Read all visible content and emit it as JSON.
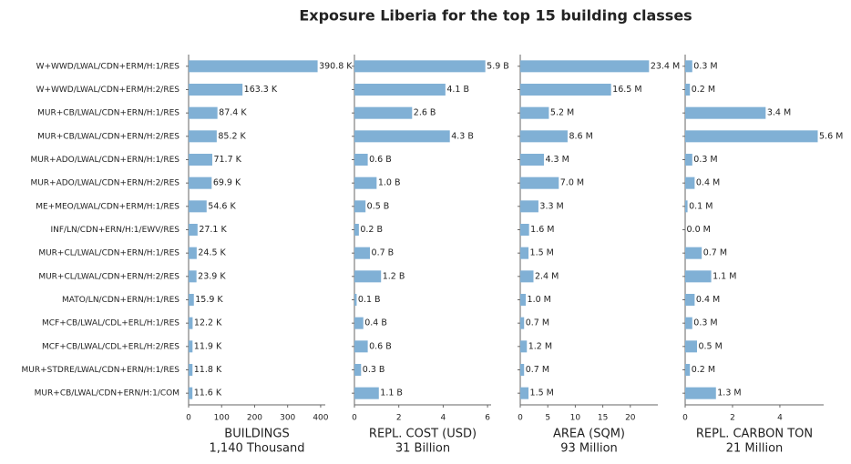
{
  "title": "Exposure Liberia for the top 15 building classes",
  "chart_data": [
    {
      "type": "barh",
      "color": "#80b0d5",
      "categories": [
        "W+WWD/LWAL/CDN+ERM/H:1/RES",
        "W+WWD/LWAL/CDN+ERM/H:2/RES",
        "MUR+CB/LWAL/CDN+ERN/H:1/RES",
        "MUR+CB/LWAL/CDN+ERN/H:2/RES",
        "MUR+ADO/LWAL/CDN+ERN/H:1/RES",
        "MUR+ADO/LWAL/CDN+ERN/H:2/RES",
        "ME+MEO/LWAL/CDN+ERM/H:1/RES",
        "INF/LN/CDN+ERN/H:1/EWV/RES",
        "MUR+CL/LWAL/CDN+ERN/H:1/RES",
        "MUR+CL/LWAL/CDN+ERN/H:2/RES",
        "MATO/LN/CDN+ERN/H:1/RES",
        "MCF+CB/LWAL/CDL+ERL/H:1/RES",
        "MCF+CB/LWAL/CDL+ERL/H:2/RES",
        "MUR+STDRE/LWAL/CDN+ERN/H:1/RES",
        "MUR+CB/LWAL/CDN+ERN/H:1/COM"
      ],
      "values": [
        390.8,
        163.3,
        87.4,
        85.2,
        71.7,
        69.9,
        54.6,
        27.1,
        24.5,
        23.9,
        15.9,
        12.2,
        11.9,
        11.8,
        11.6
      ],
      "value_labels": [
        "390.8 K",
        "163.3 K",
        "87.4 K",
        "85.2 K",
        "71.7 K",
        "69.9 K",
        "54.6 K",
        "27.1 K",
        "24.5 K",
        "23.9 K",
        "15.9 K",
        "12.2 K",
        "11.9 K",
        "11.8 K",
        "11.6 K"
      ],
      "xlim": [
        0,
        414
      ],
      "xticks": [
        0,
        100,
        200,
        300,
        400
      ],
      "xlabel": [
        "BUILDINGS",
        "1,140 Thousand"
      ]
    },
    {
      "type": "barh",
      "color": "#80b0d5",
      "values": [
        5.9,
        4.1,
        2.6,
        4.3,
        0.6,
        1.0,
        0.5,
        0.2,
        0.7,
        1.2,
        0.1,
        0.4,
        0.6,
        0.3,
        1.1
      ],
      "value_labels": [
        "5.9 B",
        "4.1 B",
        "2.6 B",
        "4.3 B",
        "0.6 B",
        "1.0 B",
        "0.5 B",
        "0.2 B",
        "0.7 B",
        "1.2 B",
        "0.1 B",
        "0.4 B",
        "0.6 B",
        "0.3 B",
        "1.1 B"
      ],
      "xlim": [
        0,
        6.16
      ],
      "xticks": [
        0,
        2,
        4,
        6
      ],
      "xlabel": [
        "REPL. COST (USD)",
        "31 Billion"
      ]
    },
    {
      "type": "barh",
      "color": "#80b0d5",
      "values": [
        23.4,
        16.5,
        5.2,
        8.6,
        4.3,
        7.0,
        3.3,
        1.6,
        1.5,
        2.4,
        1.0,
        0.7,
        1.2,
        0.7,
        1.5
      ],
      "value_labels": [
        "23.4 M",
        "16.5 M",
        "5.2 M",
        "8.6 M",
        "4.3 M",
        "7.0 M",
        "3.3 M",
        "1.6 M",
        "1.5 M",
        "2.4 M",
        "1.0 M",
        "0.7 M",
        "1.2 M",
        "0.7 M",
        "1.5 M"
      ],
      "xlim": [
        0,
        25
      ],
      "xticks": [
        0,
        5,
        10,
        15,
        20
      ],
      "xlabel": [
        "AREA (SQM)",
        "93 Million"
      ]
    },
    {
      "type": "barh",
      "color": "#80b0d5",
      "values": [
        0.3,
        0.2,
        3.4,
        5.6,
        0.3,
        0.4,
        0.1,
        0.0,
        0.7,
        1.1,
        0.4,
        0.3,
        0.5,
        0.2,
        1.3
      ],
      "value_labels": [
        "0.3 M",
        "0.2 M",
        "3.4 M",
        "5.6 M",
        "0.3 M",
        "0.4 M",
        "0.1 M",
        "0.0 M",
        "0.7 M",
        "1.1 M",
        "0.4 M",
        "0.3 M",
        "0.5 M",
        "0.2 M",
        "1.3 M"
      ],
      "xlim": [
        0,
        5.85
      ],
      "xticks": [
        0,
        2,
        4
      ],
      "xlabel": [
        "REPL. CARBON TON",
        "21 Million"
      ]
    }
  ]
}
